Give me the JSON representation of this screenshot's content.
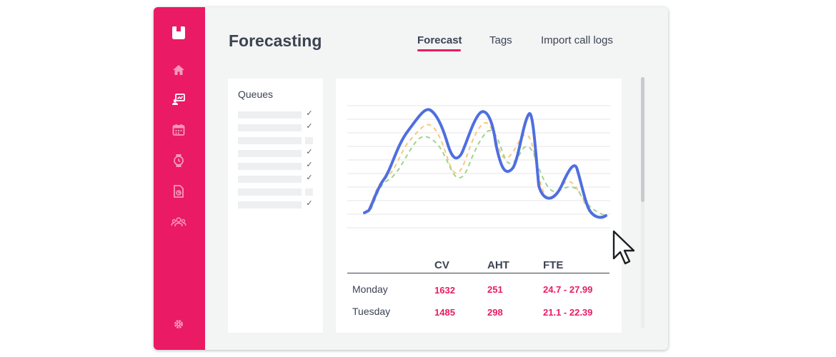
{
  "app": {
    "page_title": "Forecasting",
    "tabs": [
      {
        "label": "Forecast",
        "active": true
      },
      {
        "label": "Tags",
        "active": false
      },
      {
        "label": "Import call logs",
        "active": false
      }
    ],
    "accent_color": "#ea1a64"
  },
  "sidebar": {
    "icons": [
      "logo-icon",
      "home-icon",
      "forecast-icon",
      "calendar-icon",
      "stopwatch-icon",
      "report-icon",
      "team-icon",
      "settings-icon"
    ],
    "active": "forecast-icon"
  },
  "queues": {
    "title": "Queues",
    "items_checked": [
      true,
      true,
      false,
      true,
      true,
      true,
      false,
      true
    ]
  },
  "table": {
    "columns": [
      "CV",
      "AHT",
      "FTE"
    ],
    "rows": [
      {
        "day": "Monday",
        "cv": "1632",
        "aht": "251",
        "fte": "24.7 - 27.99"
      },
      {
        "day": "Tuesday",
        "cv": "1485",
        "aht": "298",
        "fte": "21.1  - 22.39"
      }
    ]
  },
  "chart_data": {
    "type": "line",
    "series": [
      {
        "style": "solid",
        "color": "#4f6ee0"
      },
      {
        "style": "dashed",
        "color": "#f6c979"
      },
      {
        "style": "dashed",
        "color": "#9fd38f"
      }
    ],
    "grid": true
  }
}
